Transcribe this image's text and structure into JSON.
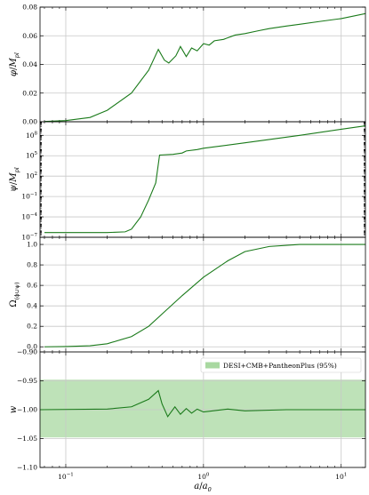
{
  "chart_data": [
    {
      "type": "line",
      "ylabel": "φ/M_pl",
      "ylabel_parts": [
        "φ",
        "/",
        "M",
        "pl"
      ],
      "yscale": "linear",
      "ylim": [
        0,
        0.08
      ],
      "yticks": [
        0.0,
        0.02,
        0.04,
        0.06,
        0.08
      ],
      "ytick_labels": [
        "0.00",
        "0.02",
        "0.04",
        "0.06",
        "0.08"
      ],
      "grid": true,
      "series": [
        {
          "color": "#1a7a1a",
          "points": [
            [
              0.07,
              0.0002
            ],
            [
              0.1,
              0.0008
            ],
            [
              0.15,
              0.003
            ],
            [
              0.2,
              0.008
            ],
            [
              0.3,
              0.02
            ],
            [
              0.4,
              0.036
            ],
            [
              0.47,
              0.0505
            ],
            [
              0.52,
              0.043
            ],
            [
              0.56,
              0.041
            ],
            [
              0.63,
              0.046
            ],
            [
              0.68,
              0.0525
            ],
            [
              0.75,
              0.0455
            ],
            [
              0.82,
              0.0515
            ],
            [
              0.9,
              0.0495
            ],
            [
              1.0,
              0.0545
            ],
            [
              1.1,
              0.0535
            ],
            [
              1.2,
              0.0565
            ],
            [
              1.4,
              0.0575
            ],
            [
              1.7,
              0.0605
            ],
            [
              2.0,
              0.0615
            ],
            [
              2.5,
              0.0635
            ],
            [
              3.0,
              0.065
            ],
            [
              4.0,
              0.0668
            ],
            [
              5.0,
              0.068
            ],
            [
              7.0,
              0.07
            ],
            [
              10.0,
              0.072
            ],
            [
              15.0,
              0.0755
            ]
          ]
        }
      ]
    },
    {
      "type": "line",
      "ylabel": "ψ/M_pl",
      "ylabel_parts": [
        "ψ",
        "/",
        "M",
        "pl"
      ],
      "yscale": "log",
      "ylim_exp": [
        -7,
        10
      ],
      "yticks_exp": [
        -7,
        -4,
        -1,
        2,
        5,
        8
      ],
      "grid": true,
      "series": [
        {
          "color": "#1a7a1a",
          "points_exp": [
            [
              0.07,
              -6.3
            ],
            [
              0.2,
              -6.3
            ],
            [
              0.27,
              -6.2
            ],
            [
              0.3,
              -5.8
            ],
            [
              0.35,
              -4.0
            ],
            [
              0.4,
              -1.5
            ],
            [
              0.45,
              1.0
            ],
            [
              0.48,
              5.1
            ],
            [
              0.6,
              5.2
            ],
            [
              0.7,
              5.4
            ],
            [
              0.75,
              5.7
            ],
            [
              0.9,
              5.9
            ],
            [
              1.0,
              6.1
            ],
            [
              2.0,
              6.9
            ],
            [
              5.0,
              8.0
            ],
            [
              10.0,
              8.9
            ],
            [
              15.0,
              9.4
            ]
          ]
        }
      ]
    },
    {
      "type": "line",
      "ylabel": "Ω_(ϕ∪ψ)",
      "ylabel_parts": [
        "Ω",
        "(ϕ∪ψ)"
      ],
      "yscale": "linear",
      "ylim": [
        -0.05,
        1.07
      ],
      "yticks": [
        0.0,
        0.2,
        0.4,
        0.6,
        0.8,
        1.0
      ],
      "ytick_labels": [
        "0.0",
        "0.2",
        "0.4",
        "0.6",
        "0.8",
        "1.0"
      ],
      "grid": true,
      "series": [
        {
          "color": "#1a7a1a",
          "points": [
            [
              0.07,
              0.0
            ],
            [
              0.1,
              0.003
            ],
            [
              0.15,
              0.01
            ],
            [
              0.2,
              0.03
            ],
            [
              0.3,
              0.1
            ],
            [
              0.4,
              0.2
            ],
            [
              0.5,
              0.32
            ],
            [
              0.7,
              0.5
            ],
            [
              1.0,
              0.68
            ],
            [
              1.5,
              0.84
            ],
            [
              2.0,
              0.93
            ],
            [
              3.0,
              0.98
            ],
            [
              5.0,
              1.0
            ],
            [
              15.0,
              1.0
            ]
          ]
        }
      ]
    },
    {
      "type": "line",
      "ylabel": "w",
      "yscale": "linear",
      "ylim": [
        -1.1,
        -0.9
      ],
      "yticks": [
        -1.1,
        -1.05,
        -1.0,
        -0.95,
        -0.9
      ],
      "ytick_labels": [
        "−1.10",
        "−1.05",
        "−1.00",
        "−0.95",
        "−0.90"
      ],
      "grid": true,
      "xlabel": "a/a₀",
      "xlabel_parts": [
        "a",
        "/",
        "a",
        "0"
      ],
      "xscale": "log",
      "xlim": [
        0.065,
        15
      ],
      "xticks_exp": [
        -1,
        0,
        1
      ],
      "band": {
        "y0": -1.048,
        "y1": -0.948,
        "color": "#a8d8a0",
        "label": "DESI+CMB+PantheonPlus (95%)"
      },
      "legend_position": "top-right",
      "series": [
        {
          "color": "#1a7a1a",
          "points": [
            [
              0.065,
              -1.0
            ],
            [
              0.2,
              -0.999
            ],
            [
              0.3,
              -0.995
            ],
            [
              0.4,
              -0.982
            ],
            [
              0.47,
              -0.967
            ],
            [
              0.5,
              -0.99
            ],
            [
              0.55,
              -1.012
            ],
            [
              0.62,
              -0.995
            ],
            [
              0.68,
              -1.008
            ],
            [
              0.75,
              -0.998
            ],
            [
              0.82,
              -1.006
            ],
            [
              0.9,
              -0.999
            ],
            [
              1.0,
              -1.004
            ],
            [
              1.5,
              -0.999
            ],
            [
              2.0,
              -1.002
            ],
            [
              4.0,
              -1.0
            ],
            [
              15.0,
              -1.0
            ]
          ]
        }
      ]
    }
  ]
}
